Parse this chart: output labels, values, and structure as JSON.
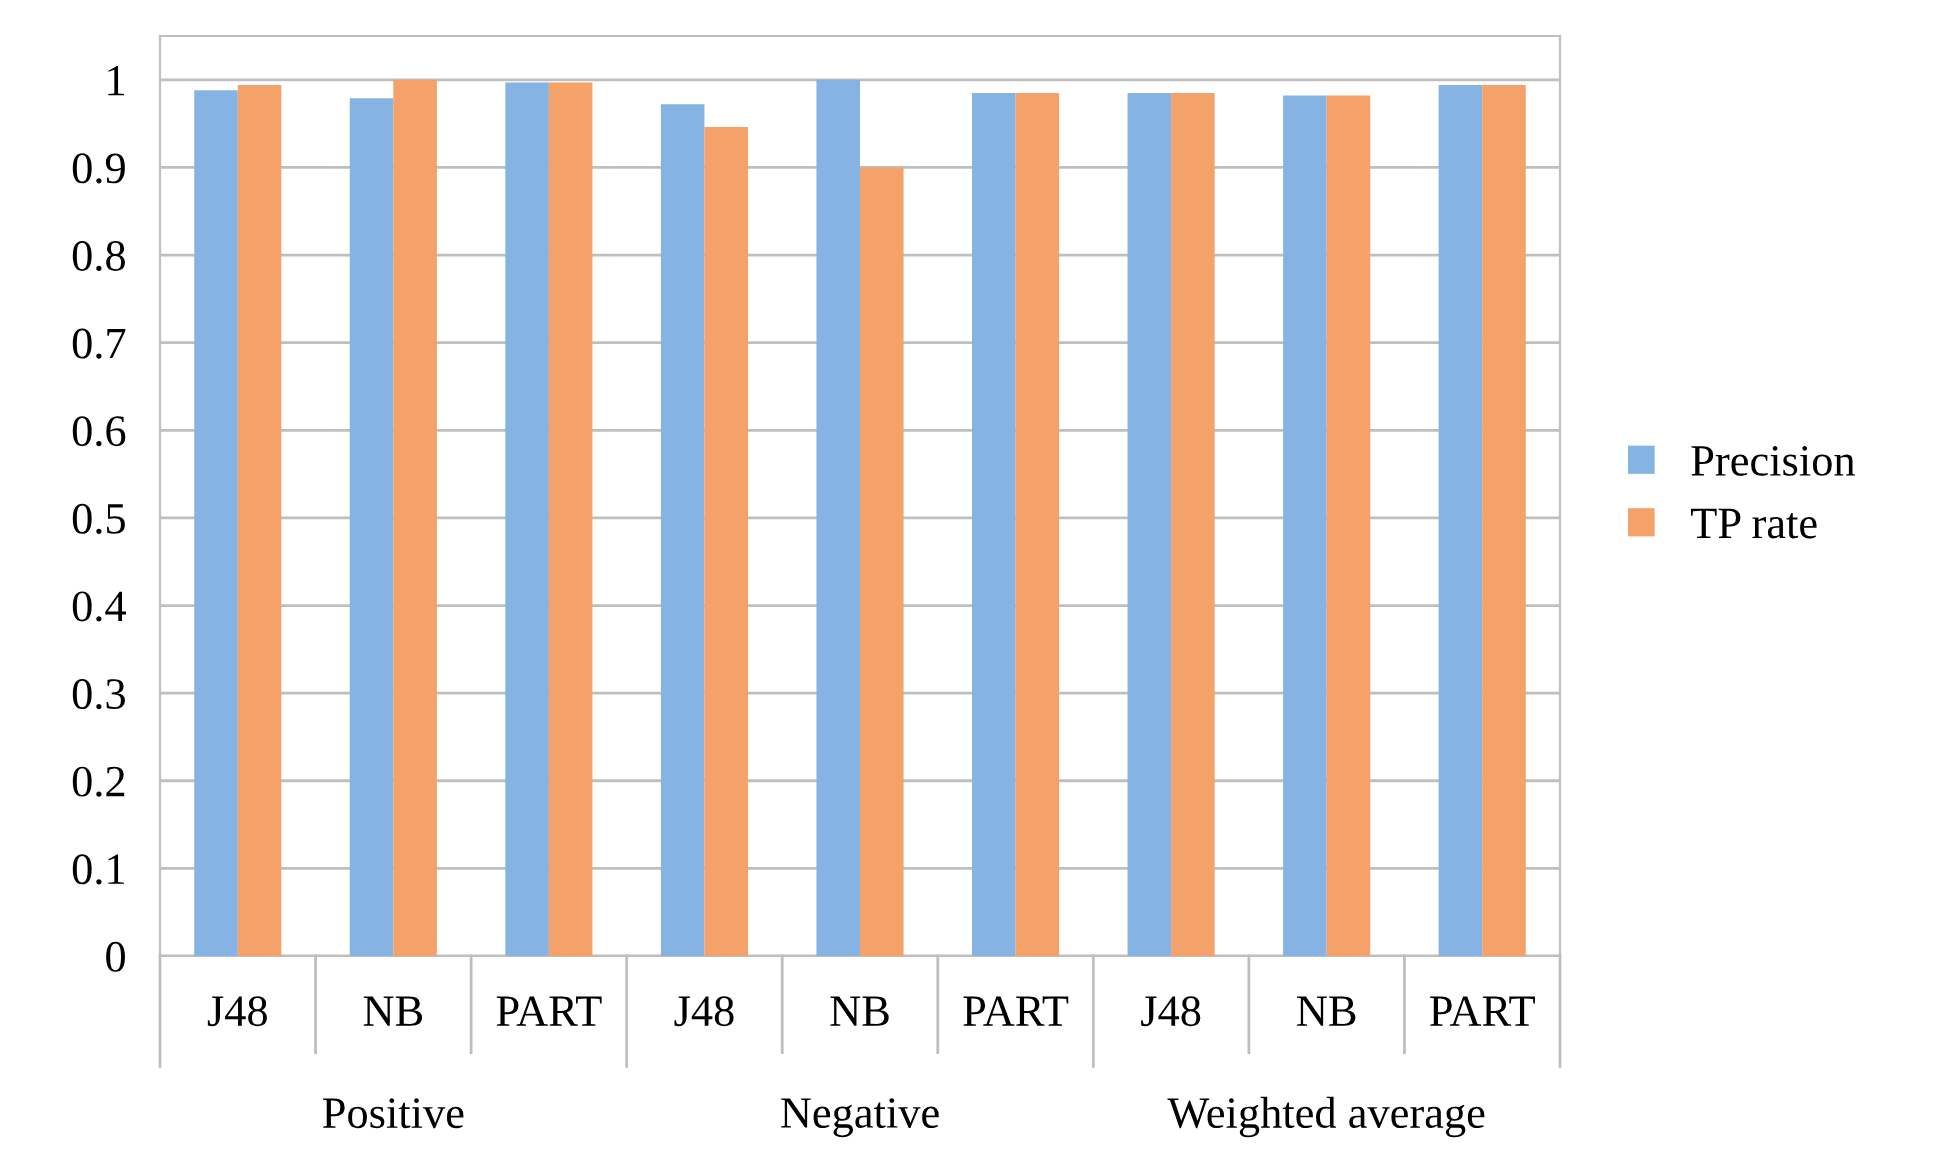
{
  "chart_data": {
    "type": "bar",
    "categories": [
      "J48",
      "NB",
      "PART",
      "J48",
      "NB",
      "PART",
      "J48",
      "NB",
      "PART"
    ],
    "series": [
      {
        "name": "Precision",
        "color": "#85b3e3",
        "values": [
          0.988,
          0.979,
          0.997,
          0.972,
          1.0,
          0.985,
          0.985,
          0.982,
          0.994
        ]
      },
      {
        "name": "TP rate",
        "color": "#f4a26a",
        "values": [
          0.994,
          1.0,
          0.997,
          0.946,
          0.9,
          0.985,
          0.985,
          0.982,
          0.994
        ]
      }
    ],
    "annotations": [
      "Positive",
      "Negative",
      "Weighted average"
    ],
    "ylim": [
      0,
      1.05
    ],
    "yticks": [
      0,
      0.1,
      0.2,
      0.3,
      0.4,
      0.5,
      0.6,
      0.7,
      0.8,
      0.9,
      1
    ],
    "grid": "y",
    "legend": "right"
  }
}
